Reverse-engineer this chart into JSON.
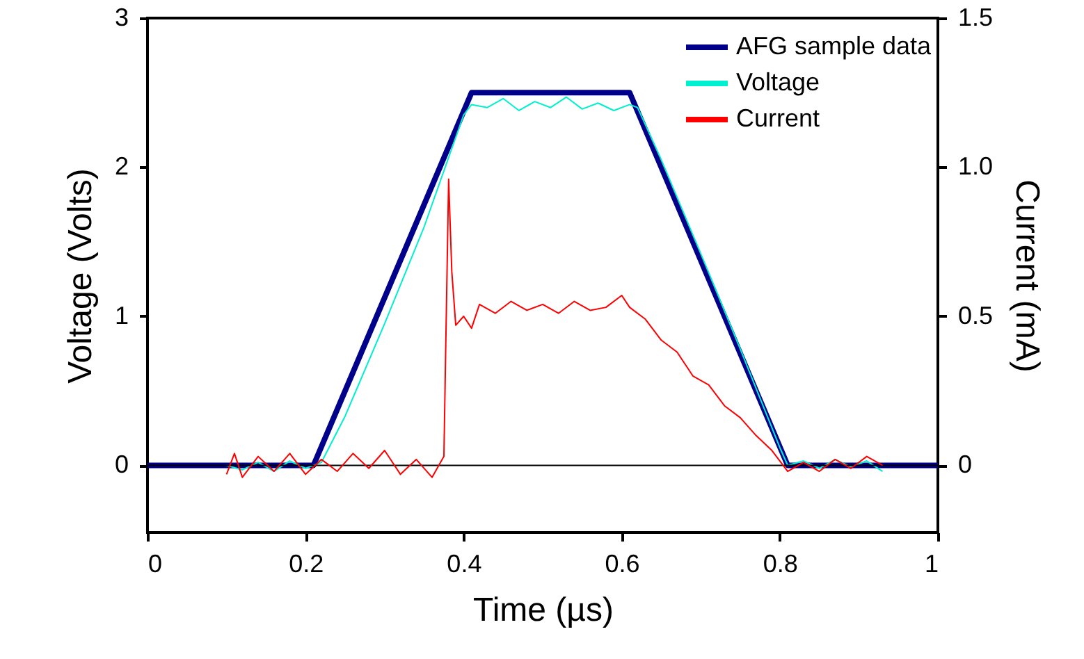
{
  "chart_data": {
    "type": "line",
    "xlabel": "Time (µs)",
    "ylabel": "Voltage (Volts)",
    "y2label": "Current (mA)",
    "xlim": [
      0,
      1
    ],
    "xticks": [
      0,
      0.2,
      0.4,
      0.6,
      0.8,
      1
    ],
    "ylim": [
      -0.45,
      3
    ],
    "yticks": [
      0,
      1,
      2,
      3
    ],
    "y2lim": [
      -0.225,
      1.5
    ],
    "y2ticks": [
      0,
      0.5,
      {
        "value": 1,
        "label": "1.0"
      },
      1.5
    ],
    "legend": "top right",
    "grid": false,
    "ref_lines": [
      {
        "axis": "y",
        "value": 0,
        "color": "#000000"
      }
    ],
    "series": [
      {
        "name": "AFG sample data",
        "color": "#00008b",
        "x": [
          0,
          0.21,
          0.41,
          0.61,
          0.81,
          1
        ],
        "values": [
          0,
          0,
          2.5,
          2.5,
          0,
          0
        ]
      },
      {
        "name": "Voltage",
        "color": "#00f0d0",
        "x": [
          0.1,
          0.12,
          0.14,
          0.16,
          0.18,
          0.2,
          0.22,
          0.25,
          0.3,
          0.35,
          0.4,
          0.41,
          0.43,
          0.45,
          0.47,
          0.49,
          0.51,
          0.53,
          0.55,
          0.57,
          0.59,
          0.61,
          0.62,
          0.65,
          0.7,
          0.75,
          0.8,
          0.81,
          0.83,
          0.85,
          0.87,
          0.89,
          0.91,
          0.93
        ],
        "values": [
          0.0,
          -0.03,
          0.02,
          -0.04,
          0.03,
          -0.02,
          0.02,
          0.33,
          0.95,
          1.6,
          2.35,
          2.42,
          2.4,
          2.46,
          2.38,
          2.44,
          2.4,
          2.47,
          2.39,
          2.43,
          2.38,
          2.42,
          2.4,
          2.05,
          1.42,
          0.78,
          0.12,
          0.0,
          0.03,
          -0.02,
          0.04,
          -0.01,
          0.03,
          -0.04
        ]
      },
      {
        "name": "Current",
        "color": "#ff0000",
        "axis": "y2",
        "x": [
          0.1,
          0.11,
          0.12,
          0.14,
          0.16,
          0.18,
          0.2,
          0.22,
          0.24,
          0.26,
          0.28,
          0.3,
          0.32,
          0.34,
          0.36,
          0.375,
          0.378,
          0.381,
          0.385,
          0.39,
          0.4,
          0.41,
          0.42,
          0.44,
          0.46,
          0.48,
          0.5,
          0.52,
          0.54,
          0.56,
          0.58,
          0.6,
          0.61,
          0.63,
          0.65,
          0.67,
          0.69,
          0.71,
          0.73,
          0.75,
          0.77,
          0.79,
          0.81,
          0.83,
          0.85,
          0.87,
          0.89,
          0.91,
          0.93
        ],
        "values": [
          -0.03,
          0.04,
          -0.04,
          0.03,
          -0.02,
          0.04,
          -0.03,
          0.02,
          -0.02,
          0.04,
          -0.01,
          0.05,
          -0.03,
          0.02,
          -0.04,
          0.03,
          0.5,
          0.96,
          0.65,
          0.47,
          0.5,
          0.46,
          0.54,
          0.51,
          0.55,
          0.52,
          0.54,
          0.51,
          0.55,
          0.52,
          0.53,
          0.57,
          0.53,
          0.49,
          0.42,
          0.38,
          0.3,
          0.27,
          0.2,
          0.16,
          0.1,
          0.05,
          -0.02,
          0.01,
          -0.02,
          0.02,
          -0.01,
          0.03,
          0.0
        ]
      }
    ]
  }
}
